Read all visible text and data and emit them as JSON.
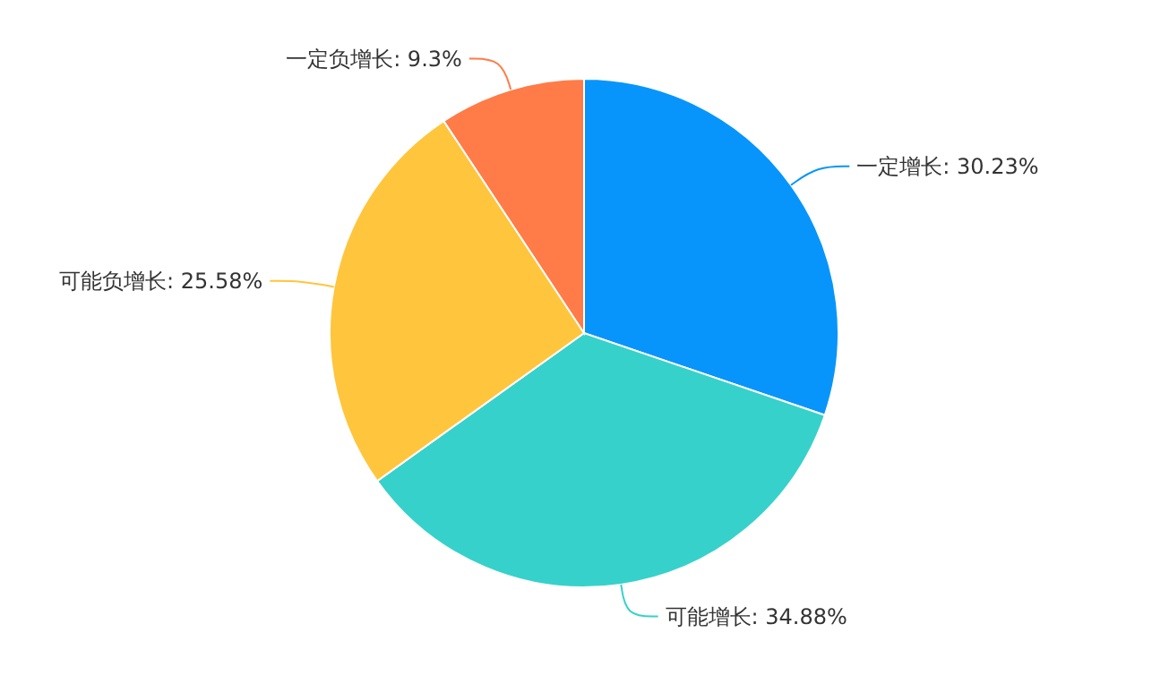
{
  "chart_data": {
    "type": "pie",
    "categories": [
      "一定增长",
      "可能增长",
      "可能负增长",
      "一定负增长"
    ],
    "values": [
      30.23,
      34.88,
      25.58,
      9.3
    ],
    "value_labels": [
      "30.23%",
      "34.88%",
      "25.58%",
      "9.3%"
    ],
    "colors": [
      "#0795fb",
      "#37d1cb",
      "#ffc53d",
      "#ff7b47"
    ]
  }
}
